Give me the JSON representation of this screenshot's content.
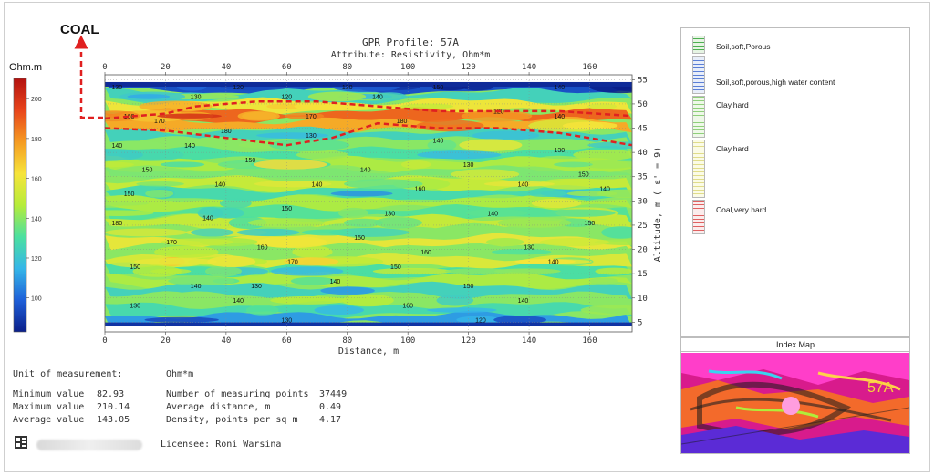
{
  "header": {
    "coal_label": "COAL",
    "colorbar_unit": "Ohm.m"
  },
  "chart_data": {
    "type": "heatmap",
    "title": "GPR Profile: 57A",
    "subtitle": "Attribute:  Resistivity, Ohm*m",
    "xlabel": "Distance, m",
    "ylabel": "Altitude, m ( ε' = 9)",
    "xlim": [
      0,
      174
    ],
    "ylim": [
      3,
      56
    ],
    "x_ticks": [
      0,
      20,
      40,
      60,
      80,
      100,
      120,
      140,
      160
    ],
    "y_ticks": [
      5,
      10,
      15,
      20,
      25,
      30,
      35,
      40,
      45,
      50,
      55
    ],
    "colorbar": {
      "range": [
        82.93,
        210.14
      ],
      "ticks": [
        100,
        120,
        140,
        160,
        180,
        200
      ],
      "colors": [
        "#0b1f8a",
        "#1e5fd8",
        "#35b6e8",
        "#4ce0a0",
        "#b6ec3a",
        "#f7e43a",
        "#f59b22",
        "#e8441b",
        "#b3120f"
      ]
    },
    "bands": [
      {
        "altitude": 53.5,
        "value": 95
      },
      {
        "altitude": 51.5,
        "value": 125
      },
      {
        "altitude": 49.5,
        "value": 160
      },
      {
        "altitude": 47.5,
        "value": 188
      },
      {
        "altitude": 45.5,
        "value": 175
      },
      {
        "altitude": 43.5,
        "value": 125
      },
      {
        "altitude": 41.5,
        "value": 140
      },
      {
        "altitude": 39.5,
        "value": 130
      },
      {
        "altitude": 37.5,
        "value": 145
      },
      {
        "altitude": 35.5,
        "value": 138
      },
      {
        "altitude": 33.5,
        "value": 150
      },
      {
        "altitude": 31.5,
        "value": 128
      },
      {
        "altitude": 29.5,
        "value": 145
      },
      {
        "altitude": 27.5,
        "value": 132
      },
      {
        "altitude": 25.5,
        "value": 150
      },
      {
        "altitude": 23.5,
        "value": 140
      },
      {
        "altitude": 21.5,
        "value": 158
      },
      {
        "altitude": 19.5,
        "value": 140
      },
      {
        "altitude": 17.5,
        "value": 155
      },
      {
        "altitude": 15.5,
        "value": 130
      },
      {
        "altitude": 13.5,
        "value": 145
      },
      {
        "altitude": 11.5,
        "value": 125
      },
      {
        "altitude": 9.5,
        "value": 140
      },
      {
        "altitude": 7.5,
        "value": 128
      },
      {
        "altitude": 5.5,
        "value": 110
      }
    ],
    "contour_labels": [
      {
        "x": 8,
        "y": 47,
        "text": "160"
      },
      {
        "x": 18,
        "y": 46,
        "text": "170"
      },
      {
        "x": 40,
        "y": 44,
        "text": "180"
      },
      {
        "x": 68,
        "y": 47,
        "text": "170"
      },
      {
        "x": 98,
        "y": 46,
        "text": "180"
      },
      {
        "x": 130,
        "y": 48,
        "text": "120"
      },
      {
        "x": 150,
        "y": 47,
        "text": "140"
      },
      {
        "x": 30,
        "y": 51,
        "text": "130"
      },
      {
        "x": 60,
        "y": 51,
        "text": "120"
      },
      {
        "x": 90,
        "y": 51,
        "text": "140"
      },
      {
        "x": 4,
        "y": 41,
        "text": "140"
      },
      {
        "x": 28,
        "y": 41,
        "text": "140"
      },
      {
        "x": 68,
        "y": 43,
        "text": "130"
      },
      {
        "x": 110,
        "y": 42,
        "text": "140"
      },
      {
        "x": 150,
        "y": 40,
        "text": "130"
      },
      {
        "x": 14,
        "y": 36,
        "text": "150"
      },
      {
        "x": 48,
        "y": 38,
        "text": "150"
      },
      {
        "x": 86,
        "y": 36,
        "text": "140"
      },
      {
        "x": 120,
        "y": 37,
        "text": "130"
      },
      {
        "x": 158,
        "y": 35,
        "text": "150"
      },
      {
        "x": 8,
        "y": 31,
        "text": "150"
      },
      {
        "x": 38,
        "y": 33,
        "text": "140"
      },
      {
        "x": 70,
        "y": 33,
        "text": "140"
      },
      {
        "x": 104,
        "y": 32,
        "text": "160"
      },
      {
        "x": 138,
        "y": 33,
        "text": "140"
      },
      {
        "x": 165,
        "y": 32,
        "text": "140"
      },
      {
        "x": 4,
        "y": 25,
        "text": "180"
      },
      {
        "x": 34,
        "y": 26,
        "text": "140"
      },
      {
        "x": 60,
        "y": 28,
        "text": "150"
      },
      {
        "x": 94,
        "y": 27,
        "text": "130"
      },
      {
        "x": 128,
        "y": 27,
        "text": "140"
      },
      {
        "x": 160,
        "y": 25,
        "text": "150"
      },
      {
        "x": 22,
        "y": 21,
        "text": "170"
      },
      {
        "x": 52,
        "y": 20,
        "text": "160"
      },
      {
        "x": 84,
        "y": 22,
        "text": "150"
      },
      {
        "x": 106,
        "y": 19,
        "text": "160"
      },
      {
        "x": 140,
        "y": 20,
        "text": "130"
      },
      {
        "x": 10,
        "y": 16,
        "text": "150"
      },
      {
        "x": 62,
        "y": 17,
        "text": "170"
      },
      {
        "x": 96,
        "y": 16,
        "text": "150"
      },
      {
        "x": 148,
        "y": 17,
        "text": "140"
      },
      {
        "x": 30,
        "y": 12,
        "text": "140"
      },
      {
        "x": 50,
        "y": 12,
        "text": "130"
      },
      {
        "x": 76,
        "y": 13,
        "text": "140"
      },
      {
        "x": 120,
        "y": 12,
        "text": "150"
      },
      {
        "x": 10,
        "y": 8,
        "text": "130"
      },
      {
        "x": 44,
        "y": 9,
        "text": "140"
      },
      {
        "x": 100,
        "y": 8,
        "text": "160"
      },
      {
        "x": 138,
        "y": 9,
        "text": "140"
      },
      {
        "x": 60,
        "y": 5,
        "text": "130"
      },
      {
        "x": 124,
        "y": 5,
        "text": "120"
      },
      {
        "x": 4,
        "y": 53,
        "text": "130"
      },
      {
        "x": 44,
        "y": 53,
        "text": "120"
      },
      {
        "x": 80,
        "y": 53,
        "text": "130"
      },
      {
        "x": 110,
        "y": 53,
        "text": "150"
      },
      {
        "x": 150,
        "y": 53,
        "text": "140"
      }
    ],
    "coal_layer": {
      "top": [
        [
          0,
          47
        ],
        [
          20,
          48
        ],
        [
          30,
          49.5
        ],
        [
          50,
          50.5
        ],
        [
          70,
          50.5
        ],
        [
          90,
          49.5
        ],
        [
          110,
          48.5
        ],
        [
          130,
          48.5
        ],
        [
          150,
          48.5
        ],
        [
          174,
          47.5
        ]
      ],
      "bottom": [
        [
          0,
          45
        ],
        [
          20,
          44.5
        ],
        [
          40,
          43
        ],
        [
          60,
          41.5
        ],
        [
          75,
          43
        ],
        [
          90,
          46
        ],
        [
          110,
          45
        ],
        [
          130,
          45
        ],
        [
          150,
          44
        ],
        [
          174,
          41.5
        ]
      ]
    }
  },
  "stats": {
    "unit_label": "Unit of measurement:",
    "unit_value": "Ohm*m",
    "min_label": "Minimum value",
    "min_value": "82.93",
    "max_label": "Maximum value",
    "max_value": "210.14",
    "avg_label": "Average value",
    "avg_value": "143.05",
    "points_label": "Number of measuring points",
    "points_value": "37449",
    "distance_label": "Average distance, m",
    "distance_value": "0.49",
    "density_label": "Density, points per sq m",
    "density_value": "4.17"
  },
  "footer": {
    "licensee": "Licensee: Roni Warsina"
  },
  "legend": {
    "items": [
      {
        "label": "Soil,soft,Porous",
        "color": "#e6f4e3",
        "pattern": "#4caf50"
      },
      {
        "label": "Soil,soft,porous,high water content",
        "color": "#e8eefa",
        "pattern": "#5b7fd6"
      },
      {
        "label": "Clay,hard",
        "color": "#eef8e8",
        "pattern": "#8fcf7a"
      },
      {
        "label": "Clay,hard",
        "color": "#fbfbe6",
        "pattern": "#e0dc8a"
      },
      {
        "label": "Coal,very hard",
        "color": "#fbecec",
        "pattern": "#e06060"
      }
    ]
  },
  "index_map": {
    "title": "Index Map",
    "profile_label": "57A"
  }
}
